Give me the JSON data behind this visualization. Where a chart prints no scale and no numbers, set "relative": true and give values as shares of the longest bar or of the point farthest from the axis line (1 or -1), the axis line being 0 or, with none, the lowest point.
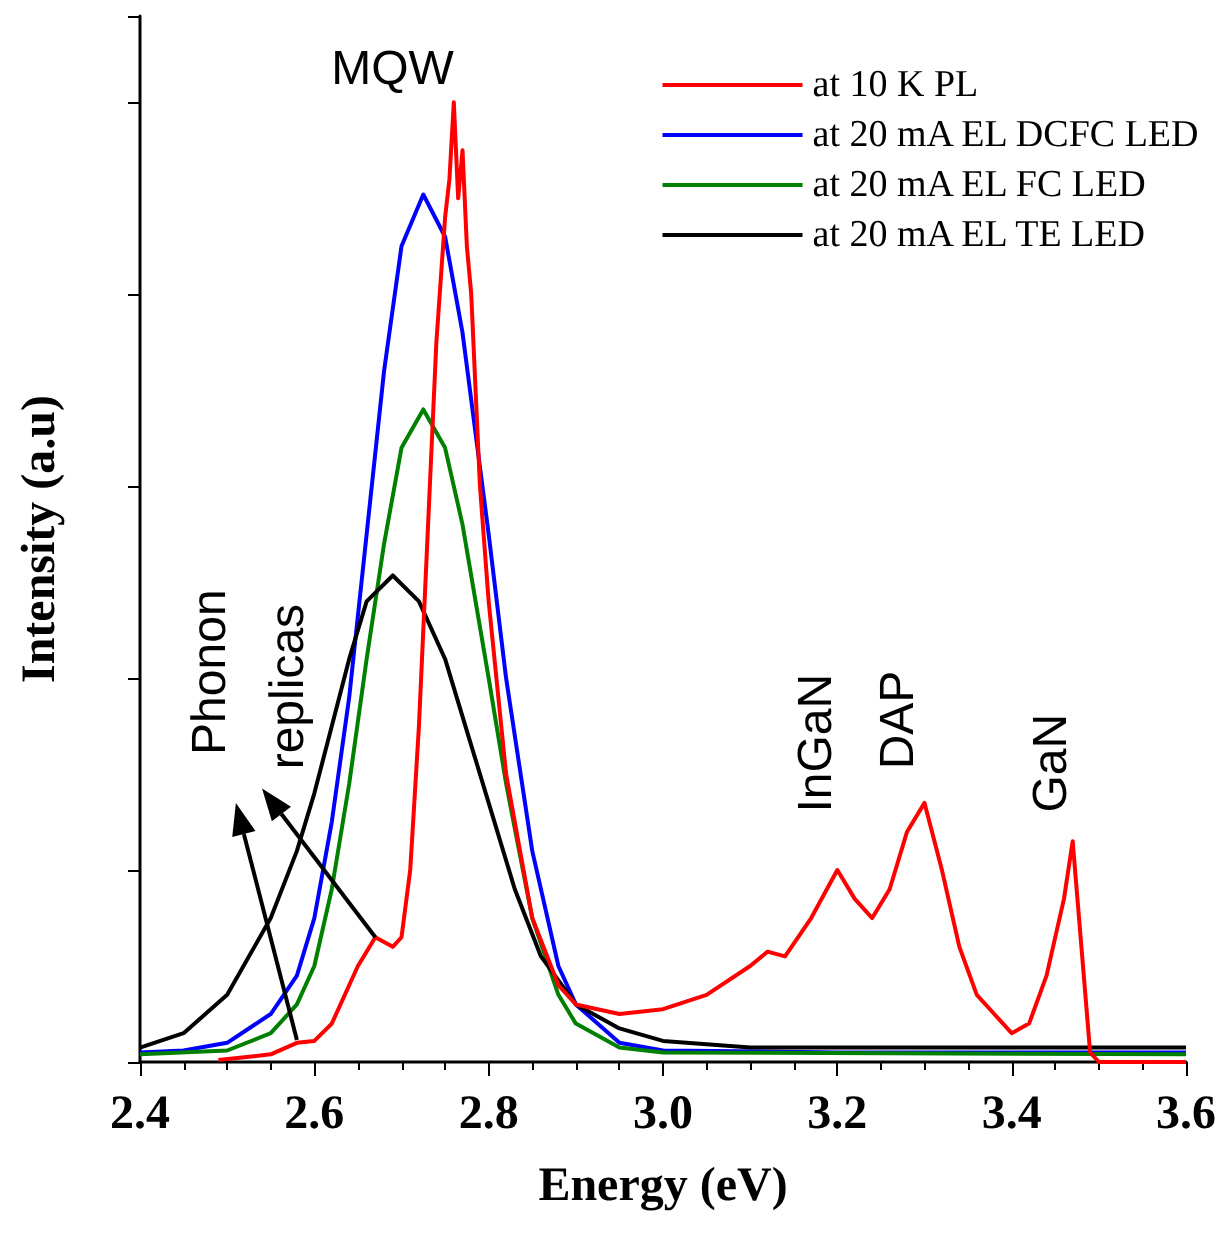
{
  "chart_data": {
    "type": "line",
    "relative": true,
    "xlabel": "Energy (eV)",
    "ylabel": "Intensity (a.u)",
    "xlim": [
      2.4,
      3.6
    ],
    "xticks": [
      {
        "value": 2.4,
        "label": "2.4"
      },
      {
        "value": 2.6,
        "label": "2.6"
      },
      {
        "value": 2.8,
        "label": "2.8"
      },
      {
        "value": 3.0,
        "label": "3.0"
      },
      {
        "value": 3.2,
        "label": "3.2"
      },
      {
        "value": 3.4,
        "label": "3.4"
      },
      {
        "value": 3.6,
        "label": "3.6"
      }
    ],
    "grid": false,
    "legend": "top right",
    "marker": "none",
    "line_style": "solid",
    "annotations": [
      "MQW",
      "Phonon",
      "replicas",
      "InGaN",
      "DAP",
      "GaN"
    ],
    "series": [
      {
        "name": "at 10 K PL",
        "color": "#ff0000",
        "x": [
          2.49,
          2.55,
          2.58,
          2.6,
          2.62,
          2.65,
          2.67,
          2.69,
          2.7,
          2.71,
          2.72,
          2.73,
          2.74,
          2.75,
          2.755,
          2.76,
          2.765,
          2.77,
          2.775,
          2.78,
          2.79,
          2.8,
          2.82,
          2.85,
          2.88,
          2.9,
          2.95,
          3.0,
          3.05,
          3.1,
          3.12,
          3.14,
          3.17,
          3.2,
          3.22,
          3.24,
          3.26,
          3.28,
          3.3,
          3.32,
          3.34,
          3.36,
          3.38,
          3.4,
          3.42,
          3.44,
          3.46,
          3.47,
          3.48,
          3.49,
          3.5,
          3.6
        ],
        "values": [
          0.002,
          0.008,
          0.02,
          0.022,
          0.04,
          0.1,
          0.13,
          0.12,
          0.13,
          0.2,
          0.35,
          0.55,
          0.75,
          0.88,
          0.92,
          1.0,
          0.9,
          0.95,
          0.85,
          0.8,
          0.6,
          0.48,
          0.3,
          0.15,
          0.08,
          0.06,
          0.05,
          0.055,
          0.07,
          0.1,
          0.115,
          0.11,
          0.15,
          0.2,
          0.17,
          0.15,
          0.18,
          0.24,
          0.27,
          0.2,
          0.12,
          0.07,
          0.05,
          0.03,
          0.04,
          0.09,
          0.17,
          0.23,
          0.12,
          0.01,
          0.0,
          0.0
        ]
      },
      {
        "name": "at 20 mA EL DCFC LED",
        "color": "#0000ff",
        "x": [
          2.4,
          2.45,
          2.5,
          2.55,
          2.58,
          2.6,
          2.62,
          2.64,
          2.66,
          2.68,
          2.7,
          2.725,
          2.75,
          2.77,
          2.8,
          2.82,
          2.85,
          2.88,
          2.9,
          2.95,
          3.0,
          3.2,
          3.6
        ],
        "values": [
          0.01,
          0.012,
          0.02,
          0.05,
          0.09,
          0.15,
          0.25,
          0.38,
          0.55,
          0.72,
          0.85,
          0.904,
          0.86,
          0.76,
          0.55,
          0.4,
          0.22,
          0.1,
          0.06,
          0.02,
          0.012,
          0.01,
          0.01
        ]
      },
      {
        "name": "at 20 mA EL FC LED",
        "color": "#008000",
        "x": [
          2.4,
          2.5,
          2.55,
          2.58,
          2.6,
          2.62,
          2.64,
          2.66,
          2.68,
          2.7,
          2.725,
          2.75,
          2.77,
          2.8,
          2.82,
          2.85,
          2.88,
          2.9,
          2.95,
          3.0,
          3.6
        ],
        "values": [
          0.008,
          0.012,
          0.03,
          0.06,
          0.1,
          0.18,
          0.29,
          0.42,
          0.54,
          0.64,
          0.68,
          0.64,
          0.56,
          0.4,
          0.29,
          0.15,
          0.07,
          0.04,
          0.015,
          0.01,
          0.008
        ]
      },
      {
        "name": "at 20 mA EL TE LED",
        "color": "#000000",
        "x": [
          2.4,
          2.45,
          2.5,
          2.55,
          2.58,
          2.6,
          2.62,
          2.64,
          2.66,
          2.69,
          2.72,
          2.75,
          2.78,
          2.8,
          2.83,
          2.86,
          2.9,
          2.95,
          3.0,
          3.1,
          3.6
        ],
        "values": [
          0.015,
          0.03,
          0.07,
          0.15,
          0.22,
          0.28,
          0.35,
          0.42,
          0.48,
          0.507,
          0.48,
          0.42,
          0.33,
          0.27,
          0.18,
          0.11,
          0.06,
          0.035,
          0.022,
          0.015,
          0.015
        ]
      }
    ]
  }
}
